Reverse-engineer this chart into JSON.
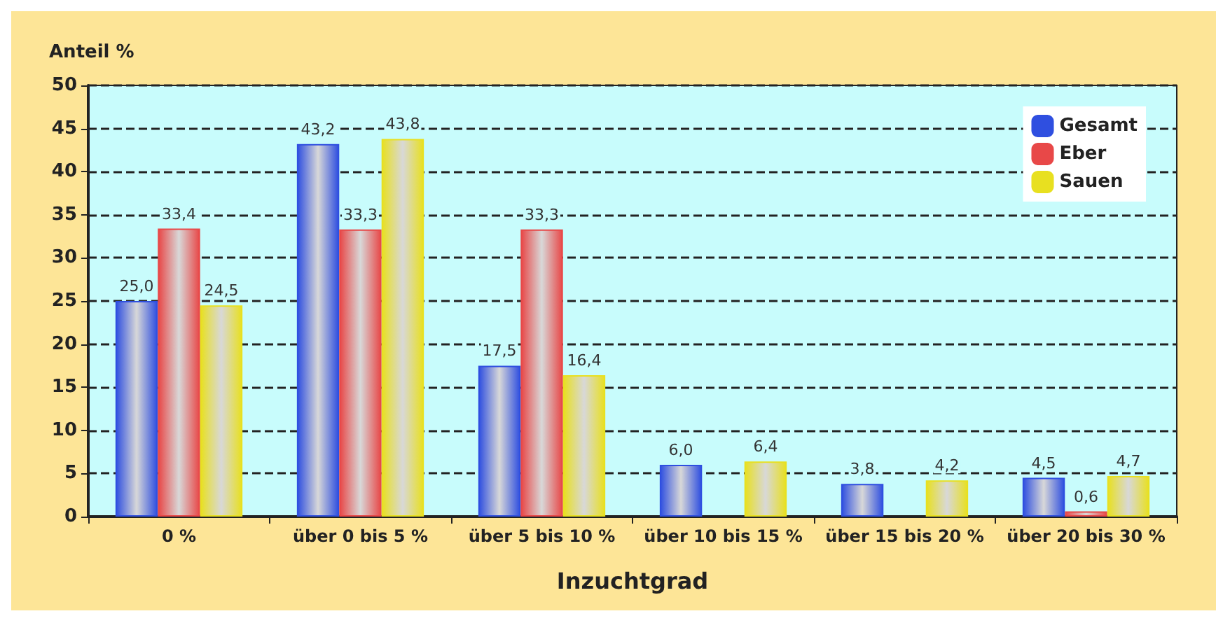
{
  "chart_data": {
    "type": "bar",
    "xlabel": "Inzuchtgrad",
    "ylabel": "Anteil %",
    "categories": [
      "0 %",
      "über 0 bis 5 %",
      "über 5 bis 10 %",
      "über 10 bis 15 %",
      "über 15 bis 20 %",
      "über 20 bis 30 %"
    ],
    "series": [
      {
        "name": "Gesamt",
        "color": "#2f4fe0",
        "values": [
          25.0,
          43.2,
          17.5,
          6.0,
          3.8,
          4.5
        ],
        "value_labels": [
          "25,0",
          "43,2",
          "17,5",
          "6,0",
          "3,8",
          "4,5"
        ]
      },
      {
        "name": "Eber",
        "color": "#e84848",
        "values": [
          33.4,
          33.3,
          33.3,
          null,
          null,
          0.6
        ],
        "value_labels": [
          "33,4",
          "33,3",
          "33,3",
          null,
          null,
          "0,6"
        ]
      },
      {
        "name": "Sauen",
        "color": "#e8e020",
        "values": [
          24.5,
          43.8,
          16.4,
          6.4,
          4.2,
          4.7
        ],
        "value_labels": [
          "24,5",
          "43,8",
          "16,4",
          "6,4",
          "4,2",
          "4,7"
        ]
      }
    ],
    "ylim": [
      0,
      50
    ],
    "yticks": [
      0,
      5,
      10,
      15,
      20,
      25,
      30,
      35,
      40,
      45,
      50
    ],
    "grid": "y",
    "legend": "top right"
  }
}
